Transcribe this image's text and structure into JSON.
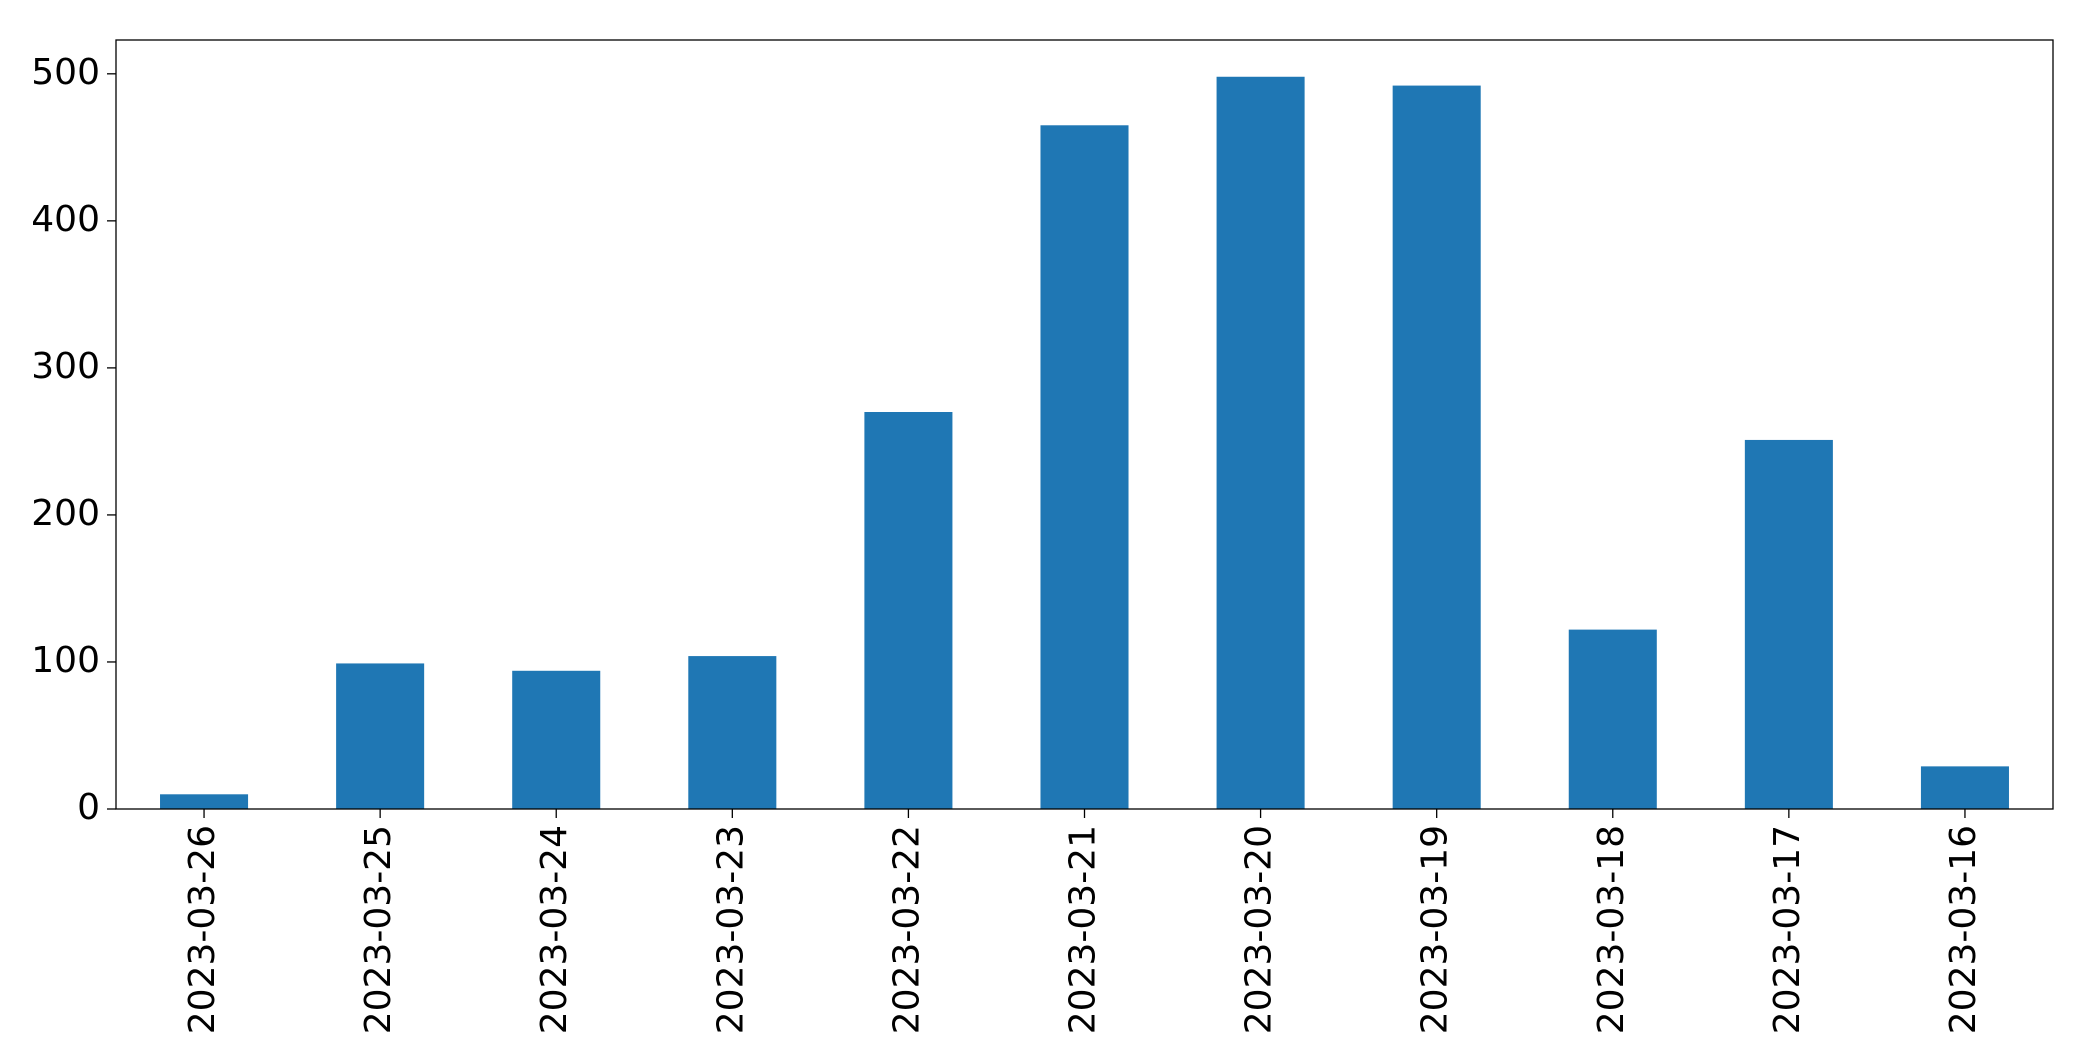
{
  "chart_data": {
    "type": "bar",
    "categories": [
      "2023-03-26",
      "2023-03-25",
      "2023-03-24",
      "2023-03-23",
      "2023-03-22",
      "2023-03-21",
      "2023-03-20",
      "2023-03-19",
      "2023-03-18",
      "2023-03-17",
      "2023-03-16"
    ],
    "values": [
      10,
      99,
      94,
      104,
      270,
      465,
      498,
      492,
      122,
      251,
      29
    ],
    "color": "#1f77b4",
    "ylim": [
      0,
      523
    ],
    "yticks": [
      0,
      100,
      200,
      300,
      400,
      500
    ],
    "grid": false
  }
}
